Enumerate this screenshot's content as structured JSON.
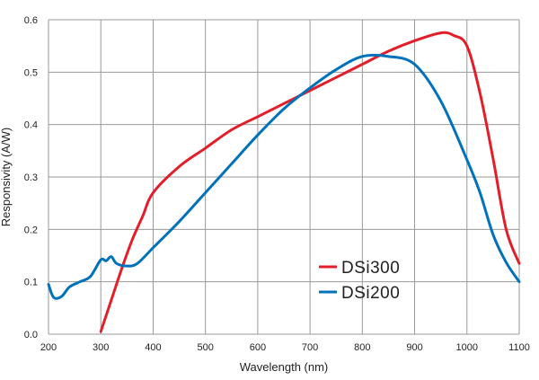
{
  "chart_data": {
    "type": "line",
    "title": "",
    "xlabel": "Wavelength (nm)",
    "ylabel": "Responsivity (A/W)",
    "xlim": [
      200,
      1100
    ],
    "ylim": [
      0,
      0.6
    ],
    "xticks": [
      200,
      300,
      400,
      500,
      600,
      700,
      800,
      900,
      1000,
      1100
    ],
    "yticks": [
      "0.0",
      "0.1",
      "0.2",
      "0.3",
      "0.4",
      "0.5",
      "0.6"
    ],
    "grid": true,
    "legend_position": "bottom-right",
    "series": [
      {
        "name": "DSi300",
        "color": "#e31e2b",
        "x": [
          300,
          320,
          340,
          360,
          380,
          400,
          450,
          500,
          550,
          600,
          650,
          700,
          750,
          800,
          850,
          900,
          950,
          975,
          1000,
          1025,
          1050,
          1075,
          1100
        ],
        "y": [
          0.005,
          0.065,
          0.125,
          0.18,
          0.225,
          0.27,
          0.32,
          0.355,
          0.39,
          0.415,
          0.44,
          0.465,
          0.49,
          0.515,
          0.54,
          0.56,
          0.575,
          0.57,
          0.55,
          0.46,
          0.335,
          0.2,
          0.135
        ]
      },
      {
        "name": "DSi200",
        "color": "#0072bc",
        "x": [
          200,
          210,
          225,
          240,
          260,
          280,
          300,
          310,
          320,
          330,
          350,
          370,
          400,
          450,
          500,
          550,
          600,
          650,
          700,
          750,
          800,
          850,
          900,
          950,
          1000,
          1025,
          1050,
          1075,
          1100
        ],
        "y": [
          0.095,
          0.07,
          0.072,
          0.09,
          0.1,
          0.11,
          0.142,
          0.14,
          0.148,
          0.135,
          0.13,
          0.135,
          0.165,
          0.215,
          0.27,
          0.325,
          0.38,
          0.43,
          0.47,
          0.505,
          0.53,
          0.53,
          0.515,
          0.445,
          0.333,
          0.27,
          0.19,
          0.137,
          0.1
        ]
      }
    ]
  }
}
